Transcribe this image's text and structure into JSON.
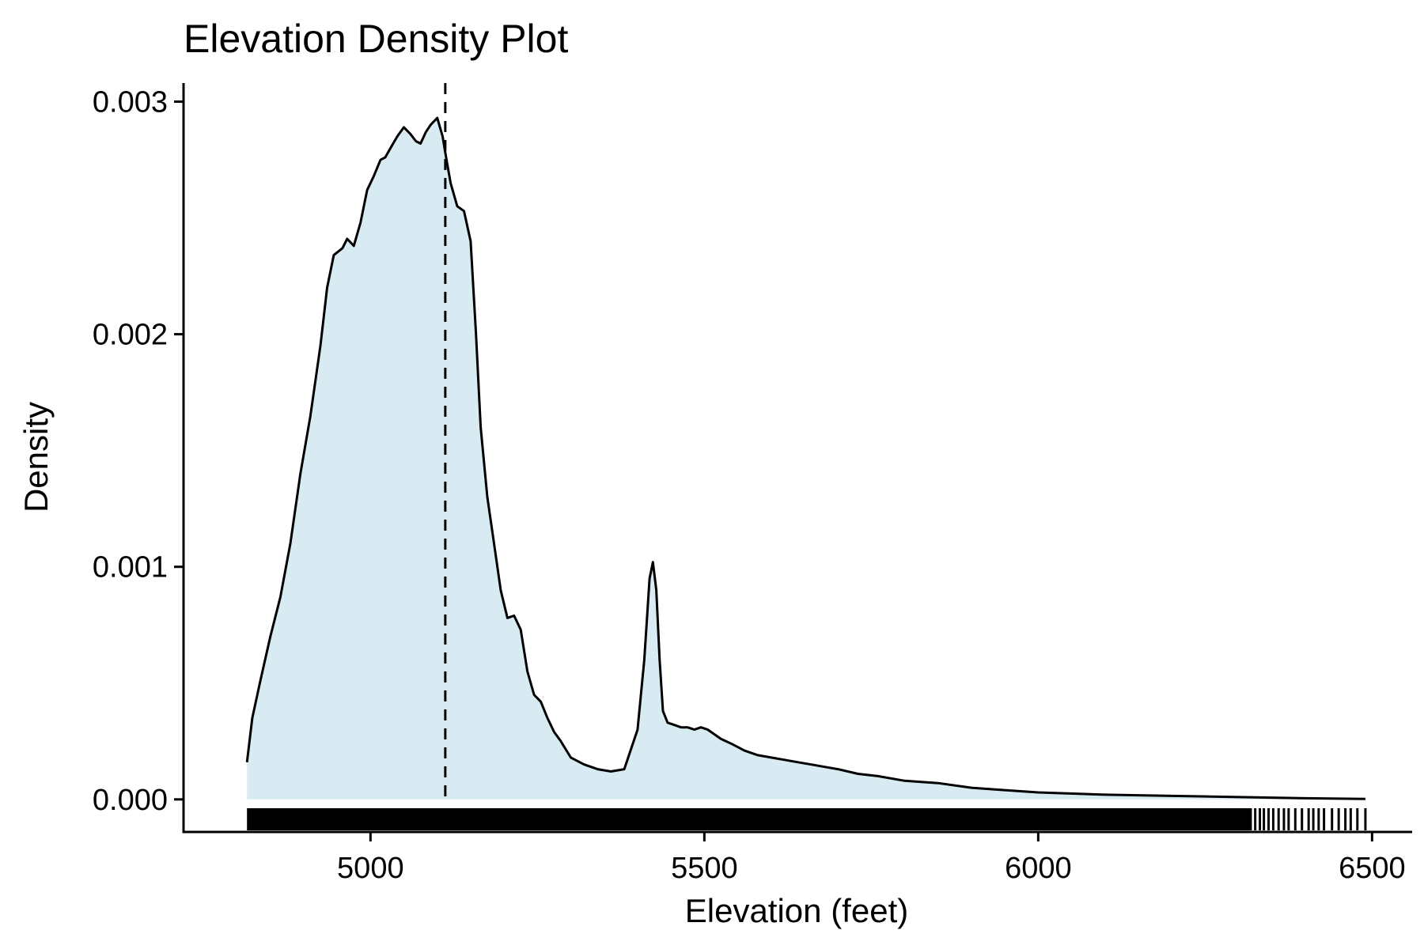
{
  "chart_data": {
    "type": "area",
    "title": "Elevation Density Plot",
    "xlabel": "Elevation (feet)",
    "ylabel": "Density",
    "xlim": [
      4720,
      6560
    ],
    "ylim": [
      -0.00014,
      0.00308
    ],
    "x_ticks": [
      5000,
      5500,
      6000,
      6500
    ],
    "x_tick_labels": [
      "5000",
      "5500",
      "6000",
      "6500"
    ],
    "y_ticks": [
      0.0,
      0.001,
      0.002,
      0.003
    ],
    "y_tick_labels": [
      "0.000",
      "0.001",
      "0.002",
      "0.003"
    ],
    "grid": false,
    "legend": "none",
    "colors": {
      "fill": "#d8eaf2",
      "line": "#000000",
      "rug": "#000000"
    },
    "reference_line": {
      "x": 5112,
      "style": "dashed"
    },
    "series": [
      {
        "x": [
          4815,
          4823,
          4835,
          4850,
          4865,
          4880,
          4895,
          4910,
          4925,
          4935,
          4945,
          4958,
          4965,
          4975,
          4985,
          4995,
          5005,
          5015,
          5022,
          5030,
          5040,
          5050,
          5060,
          5068,
          5075,
          5083,
          5090,
          5100,
          5108,
          5112,
          5120,
          5130,
          5140,
          5150,
          5158,
          5165,
          5175,
          5185,
          5195,
          5205,
          5215,
          5225,
          5235,
          5245,
          5255,
          5265,
          5275,
          5285,
          5300,
          5320,
          5340,
          5360,
          5380,
          5400,
          5410,
          5418,
          5423,
          5428,
          5433,
          5438,
          5445,
          5455,
          5465,
          5475,
          5485,
          5495,
          5505,
          5515,
          5525,
          5540,
          5560,
          5580,
          5600,
          5620,
          5640,
          5660,
          5680,
          5700,
          5730,
          5760,
          5800,
          5850,
          5900,
          5950,
          6000,
          6100,
          6200,
          6300,
          6400,
          6490
        ],
        "values": [
          0.00016,
          0.00035,
          0.00051,
          0.0007,
          0.00087,
          0.0011,
          0.0014,
          0.00165,
          0.00195,
          0.0022,
          0.00234,
          0.00237,
          0.00241,
          0.00238,
          0.00248,
          0.00262,
          0.00268,
          0.00275,
          0.00276,
          0.0028,
          0.00285,
          0.00289,
          0.00286,
          0.00283,
          0.00282,
          0.00287,
          0.0029,
          0.00293,
          0.00285,
          0.00278,
          0.00265,
          0.00255,
          0.00253,
          0.0024,
          0.002,
          0.0016,
          0.0013,
          0.0011,
          0.0009,
          0.00078,
          0.00079,
          0.00073,
          0.00055,
          0.00045,
          0.00042,
          0.00035,
          0.00029,
          0.00025,
          0.00018,
          0.00015,
          0.00013,
          0.00012,
          0.00013,
          0.0003,
          0.0006,
          0.00095,
          0.00102,
          0.0009,
          0.0006,
          0.00038,
          0.00033,
          0.00032,
          0.00031,
          0.00031,
          0.0003,
          0.00031,
          0.0003,
          0.00028,
          0.00026,
          0.00024,
          0.00021,
          0.00019,
          0.00018,
          0.00017,
          0.00016,
          0.00015,
          0.00014,
          0.00013,
          0.00011,
          0.0001,
          8e-05,
          7e-05,
          5e-05,
          4e-05,
          3e-05,
          2e-05,
          1.5e-05,
          1e-05,
          5e-06,
          2e-06
        ]
      }
    ],
    "rug": {
      "start": 4815,
      "solid_until": 6320,
      "extra_ticks": [
        6325,
        6332,
        6338,
        6345,
        6352,
        6360,
        6368,
        6375,
        6385,
        6395,
        6405,
        6412,
        6420,
        6428,
        6440,
        6450,
        6460,
        6468,
        6478,
        6490
      ]
    }
  }
}
